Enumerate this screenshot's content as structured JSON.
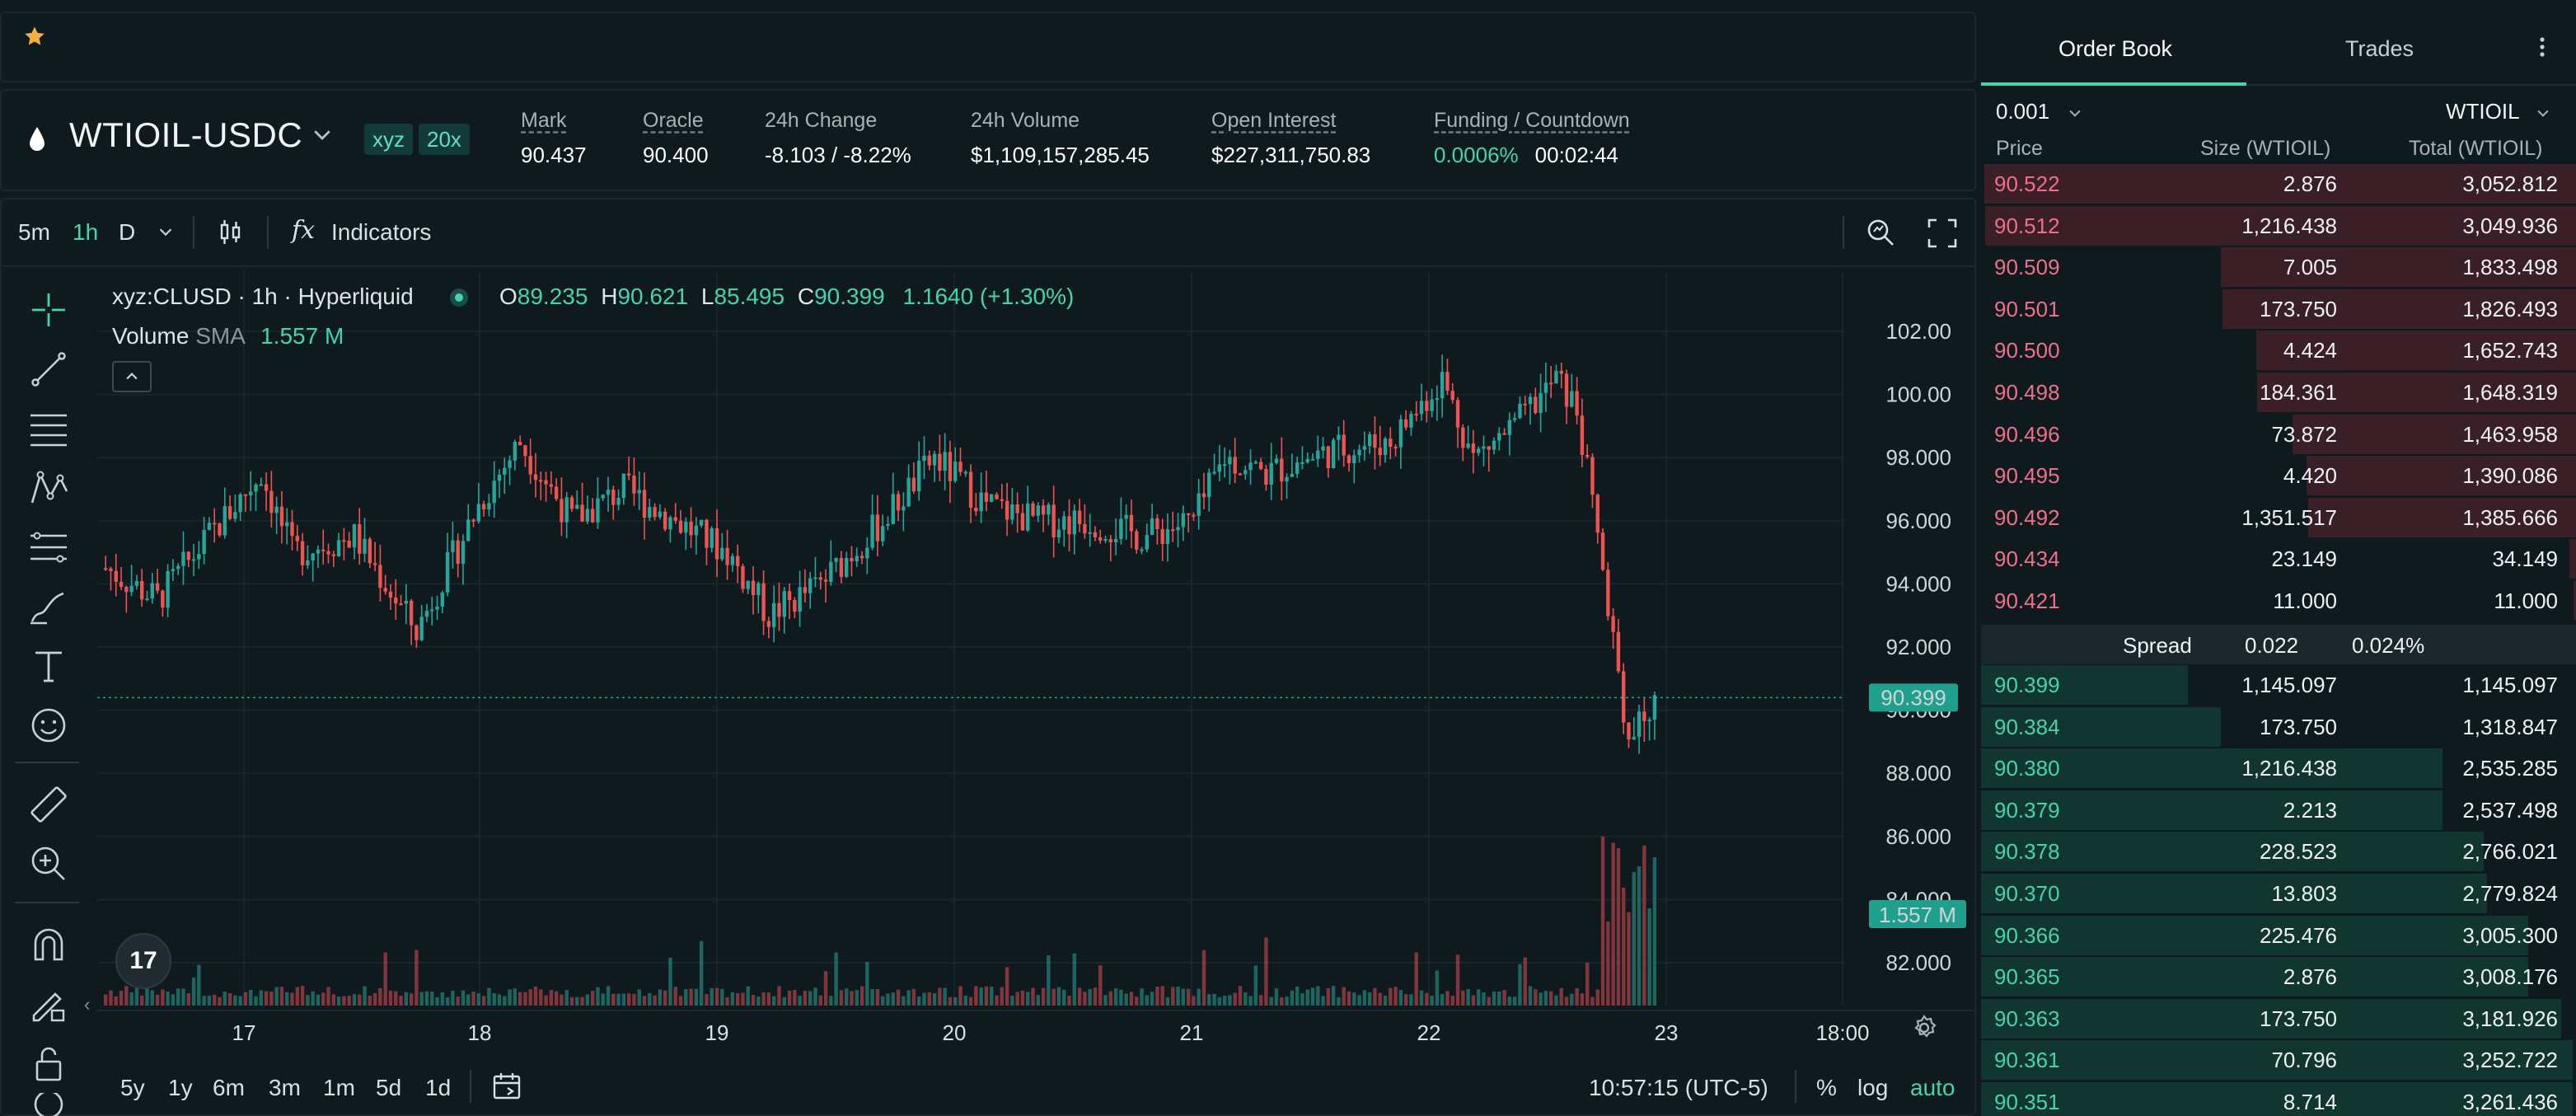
{
  "header": {
    "symbol": "WTIOIL-USDC",
    "dex_badge": "xyz",
    "leverage_badge": "20x",
    "stats": [
      {
        "label": "Mark",
        "value": "90.437",
        "underline": true
      },
      {
        "label": "Oracle",
        "value": "90.400",
        "underline": true
      },
      {
        "label": "24h Change",
        "value": "-8.103 / -8.22%",
        "underline": false,
        "tone": "neg"
      },
      {
        "label": "24h Volume",
        "value": "$1,109,157,285.45",
        "underline": false
      },
      {
        "label": "Open Interest",
        "value": "$227,311,750.83",
        "underline": true
      },
      {
        "label": "Funding / Countdown",
        "funding": "0.0006%",
        "countdown": "00:02:44",
        "underline": true
      }
    ]
  },
  "toolbar": {
    "timeframes": [
      "5m",
      "1h",
      "D"
    ],
    "active_timeframe": "1h",
    "indicators_label": "Indicators",
    "fx_label": "fx"
  },
  "chart": {
    "legend_title": "xyz:CLUSD · 1h · Hyperliquid",
    "ohlc": {
      "o": "89.235",
      "h": "90.621",
      "l": "85.495",
      "c": "90.399",
      "change": "1.1640 (+1.30%)"
    },
    "volume_label": "Volume",
    "volume_sma": "SMA",
    "volume_value": "1.557 M",
    "last_price_tag": "90.399",
    "volume_tag": "1.557 M",
    "logo_text": "17"
  },
  "chart_data": {
    "type": "candlestick",
    "y_ticks": [
      "102.00",
      "100.00",
      "98.000",
      "96.000",
      "94.000",
      "92.000",
      "90.000",
      "88.000",
      "86.000",
      "84.000",
      "82.000"
    ],
    "ylim": [
      81,
      103
    ],
    "x_ticks": [
      "17",
      "18",
      "19",
      "20",
      "21",
      "22",
      "23",
      "18:00"
    ],
    "last_price": 90.399,
    "anchors": [
      [
        0,
        94.5
      ],
      [
        10,
        93.5
      ],
      [
        20,
        95.5
      ],
      [
        30,
        97.5
      ],
      [
        36,
        95.0
      ],
      [
        48,
        95.5
      ],
      [
        60,
        92.5
      ],
      [
        72,
        96.5
      ],
      [
        80,
        98.5
      ],
      [
        90,
        96.0
      ],
      [
        100,
        97.0
      ],
      [
        110,
        96.0
      ],
      [
        120,
        95.0
      ],
      [
        128,
        93.0
      ],
      [
        138,
        94.0
      ],
      [
        150,
        96.0
      ],
      [
        160,
        98.0
      ],
      [
        170,
        96.5
      ],
      [
        180,
        96.0
      ],
      [
        190,
        96.0
      ],
      [
        200,
        95.5
      ],
      [
        210,
        96.0
      ],
      [
        216,
        98.0
      ],
      [
        224,
        97.5
      ],
      [
        236,
        98.2
      ],
      [
        248,
        98.5
      ],
      [
        258,
        100.5
      ],
      [
        264,
        98.0
      ],
      [
        272,
        99.0
      ],
      [
        280,
        100.5
      ],
      [
        284,
        99.5
      ],
      [
        290,
        93.5
      ],
      [
        294,
        89.0
      ],
      [
        300,
        90.4
      ]
    ],
    "candle_count": 300
  },
  "range_buttons": [
    "5y",
    "1y",
    "6m",
    "3m",
    "1m",
    "5d",
    "1d"
  ],
  "bottom": {
    "clock": "10:57:15 (UTC-5)",
    "percent": "%",
    "log": "log",
    "auto": "auto"
  },
  "orderbook": {
    "tabs": [
      "Order Book",
      "Trades"
    ],
    "active_tab": "Order Book",
    "tick_size": "0.001",
    "unit": "WTIOIL",
    "headers": {
      "price": "Price",
      "size": "Size (WTIOIL)",
      "total": "Total (WTIOIL)"
    },
    "asks": [
      {
        "price": "90.522",
        "size": "2.876",
        "total": "3,052.812",
        "depth": 1.0
      },
      {
        "price": "90.512",
        "size": "1,216.438",
        "total": "3,049.936",
        "depth": 0.999
      },
      {
        "price": "90.509",
        "size": "7.005",
        "total": "1,833.498",
        "depth": 0.6
      },
      {
        "price": "90.501",
        "size": "173.750",
        "total": "1,826.493",
        "depth": 0.598
      },
      {
        "price": "90.500",
        "size": "4.424",
        "total": "1,652.743",
        "depth": 0.54
      },
      {
        "price": "90.498",
        "size": "184.361",
        "total": "1,648.319",
        "depth": 0.539
      },
      {
        "price": "90.496",
        "size": "73.872",
        "total": "1,463.958",
        "depth": 0.479
      },
      {
        "price": "90.495",
        "size": "4.420",
        "total": "1,390.086",
        "depth": 0.455
      },
      {
        "price": "90.492",
        "size": "1,351.517",
        "total": "1,385.666",
        "depth": 0.453
      },
      {
        "price": "90.434",
        "size": "23.149",
        "total": "34.149",
        "depth": 0.011
      },
      {
        "price": "90.421",
        "size": "11.000",
        "total": "11.000",
        "depth": 0.004
      }
    ],
    "spread": {
      "label": "Spread",
      "value": "0.022",
      "pct": "0.024%"
    },
    "bids": [
      {
        "price": "90.399",
        "size": "1,145.097",
        "total": "1,145.097",
        "depth": 0.35
      },
      {
        "price": "90.384",
        "size": "173.750",
        "total": "1,318.847",
        "depth": 0.405
      },
      {
        "price": "90.380",
        "size": "1,216.438",
        "total": "2,535.285",
        "depth": 0.78
      },
      {
        "price": "90.379",
        "size": "2.213",
        "total": "2,537.498",
        "depth": 0.78
      },
      {
        "price": "90.378",
        "size": "228.523",
        "total": "2,766.021",
        "depth": 0.85
      },
      {
        "price": "90.370",
        "size": "13.803",
        "total": "2,779.824",
        "depth": 0.855
      },
      {
        "price": "90.366",
        "size": "225.476",
        "total": "3,005.300",
        "depth": 0.925
      },
      {
        "price": "90.365",
        "size": "2.876",
        "total": "3,008.176",
        "depth": 0.925
      },
      {
        "price": "90.363",
        "size": "173.750",
        "total": "3,181.926",
        "depth": 0.98
      },
      {
        "price": "90.361",
        "size": "70.796",
        "total": "3,252.722",
        "depth": 1.0
      },
      {
        "price": "90.351",
        "size": "8.714",
        "total": "3,261.436",
        "depth": 1.0
      }
    ]
  },
  "colors": {
    "up": "#26a69a",
    "down": "#ef5350",
    "accent": "#45d3b0",
    "ask_bg": "#3b1f27",
    "bid_bg": "#11352f"
  }
}
